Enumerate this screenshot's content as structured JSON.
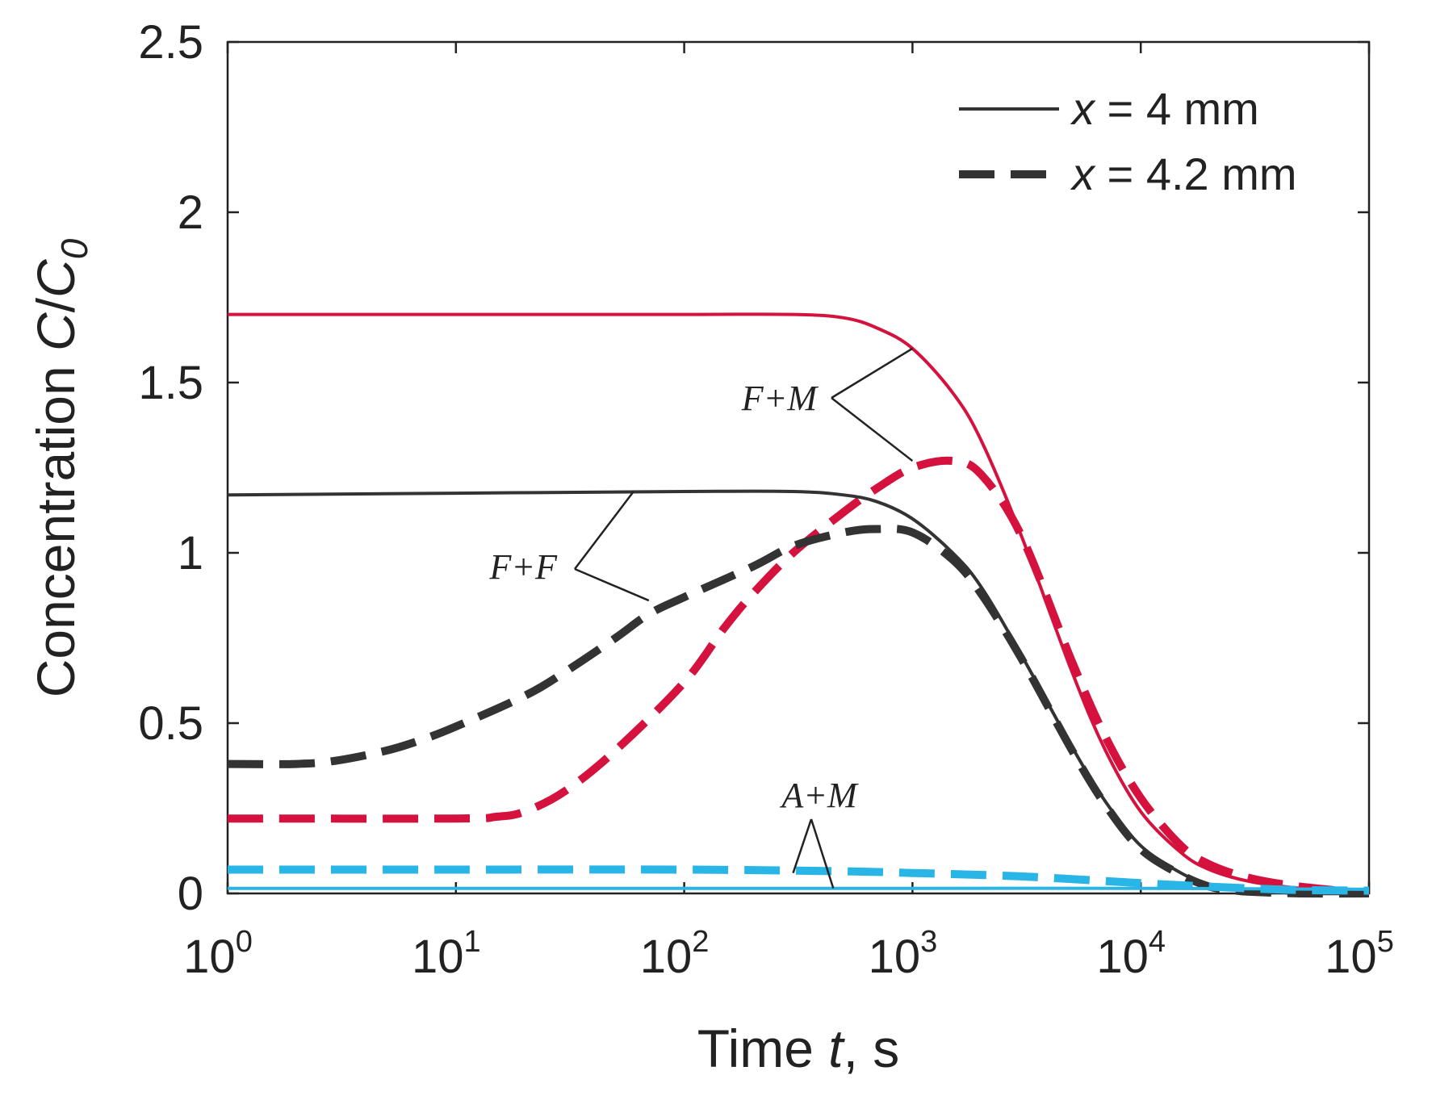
{
  "chart_data": {
    "type": "line",
    "title": "",
    "xlabel": {
      "prefix": "Time ",
      "var": "t",
      "suffix": ", s"
    },
    "ylabel": {
      "prefix": "Concentration ",
      "var": "C",
      "slash": "/",
      "var2": "C",
      "sub": "0"
    },
    "xscale": "log",
    "xlim": [
      1,
      100000
    ],
    "ylim": [
      0,
      2.5
    ],
    "x_ticks": [
      {
        "value": 1,
        "base": "10",
        "exp": "0"
      },
      {
        "value": 10,
        "base": "10",
        "exp": "1"
      },
      {
        "value": 100,
        "base": "10",
        "exp": "2"
      },
      {
        "value": 1000,
        "base": "10",
        "exp": "3"
      },
      {
        "value": 10000,
        "base": "10",
        "exp": "4"
      },
      {
        "value": 100000,
        "base": "10",
        "exp": "5"
      }
    ],
    "y_ticks": [
      {
        "value": 0,
        "label": "0"
      },
      {
        "value": 0.5,
        "label": "0.5"
      },
      {
        "value": 1,
        "label": "1"
      },
      {
        "value": 1.5,
        "label": "1.5"
      },
      {
        "value": 2,
        "label": "2"
      },
      {
        "value": 2.5,
        "label": "2.5"
      }
    ],
    "legend": {
      "position": "top-right",
      "entries": [
        {
          "var": "x",
          "text": " = 4 mm",
          "style": "solid"
        },
        {
          "var": "x",
          "text": " = 4.2 mm",
          "style": "dashed"
        }
      ]
    },
    "series": [
      {
        "name": "F+M, x = 4 mm",
        "color": "#d4123d",
        "style": "solid",
        "x": [
          1,
          10,
          100,
          300,
          500,
          700,
          1000,
          1500,
          2000,
          3000,
          5000,
          7000,
          10000,
          15000,
          20000,
          30000,
          50000,
          100000
        ],
        "y": [
          1.7,
          1.7,
          1.7,
          1.7,
          1.69,
          1.66,
          1.6,
          1.47,
          1.33,
          1.05,
          0.65,
          0.42,
          0.24,
          0.12,
          0.07,
          0.035,
          0.015,
          0.0
        ]
      },
      {
        "name": "F+M, x = 4.2 mm",
        "color": "#d4123d",
        "style": "dashed",
        "x": [
          1,
          10,
          15,
          20,
          30,
          50,
          100,
          150,
          200,
          300,
          500,
          700,
          1000,
          1500,
          2000,
          3000,
          5000,
          7000,
          10000,
          15000,
          20000,
          30000,
          50000,
          100000
        ],
        "y": [
          0.22,
          0.22,
          0.225,
          0.24,
          0.3,
          0.42,
          0.62,
          0.78,
          0.88,
          1.0,
          1.12,
          1.19,
          1.25,
          1.27,
          1.23,
          1.05,
          0.68,
          0.46,
          0.28,
          0.14,
          0.085,
          0.045,
          0.02,
          0.0
        ]
      },
      {
        "name": "F+F, x = 4 mm",
        "color": "#333333",
        "style": "solid",
        "x": [
          1,
          10,
          100,
          300,
          500,
          700,
          1000,
          1500,
          2000,
          3000,
          5000,
          7000,
          10000,
          15000,
          20000,
          25000,
          30000,
          50000,
          100000
        ],
        "y": [
          1.17,
          1.175,
          1.18,
          1.18,
          1.17,
          1.15,
          1.1,
          1.0,
          0.9,
          0.7,
          0.43,
          0.27,
          0.14,
          0.06,
          0.025,
          0.015,
          0.01,
          0.0,
          0.0
        ]
      },
      {
        "name": "F+F, x = 4.2 mm",
        "color": "#333333",
        "style": "dashed",
        "x": [
          1,
          2,
          3,
          5,
          7,
          10,
          20,
          30,
          50,
          70,
          100,
          200,
          300,
          500,
          700,
          1000,
          1500,
          2000,
          3000,
          5000,
          7000,
          10000,
          15000,
          20000,
          25000,
          30000,
          50000,
          100000
        ],
        "y": [
          0.38,
          0.38,
          0.39,
          0.42,
          0.45,
          0.49,
          0.58,
          0.65,
          0.75,
          0.82,
          0.87,
          0.96,
          1.02,
          1.06,
          1.07,
          1.06,
          0.98,
          0.88,
          0.69,
          0.42,
          0.26,
          0.13,
          0.055,
          0.02,
          0.01,
          0.005,
          0.0,
          0.0
        ]
      },
      {
        "name": "A+M, x = 4 mm",
        "color": "#29b6e6",
        "style": "solid",
        "x": [
          1,
          10,
          100,
          1000,
          10000,
          100000
        ],
        "y": [
          0.015,
          0.015,
          0.015,
          0.015,
          0.015,
          0.012
        ]
      },
      {
        "name": "A+M, x = 4.2 mm",
        "color": "#29b6e6",
        "style": "dashed",
        "x": [
          1,
          10,
          100,
          500,
          1000,
          3000,
          10000,
          20000,
          30000,
          50000,
          100000
        ],
        "y": [
          0.07,
          0.07,
          0.07,
          0.065,
          0.06,
          0.05,
          0.03,
          0.02,
          0.015,
          0.01,
          0.008
        ]
      }
    ],
    "annotations": [
      {
        "text": "F+M",
        "targets": [
          [
            1000,
            1.6
          ],
          [
            1000,
            1.27
          ]
        ]
      },
      {
        "text": "F+F",
        "targets": [
          [
            60,
            1.18
          ],
          [
            70,
            0.86
          ]
        ]
      },
      {
        "text": "A+M",
        "targets": [
          [
            300,
            0.06
          ],
          [
            450,
            0.015
          ]
        ]
      }
    ]
  }
}
